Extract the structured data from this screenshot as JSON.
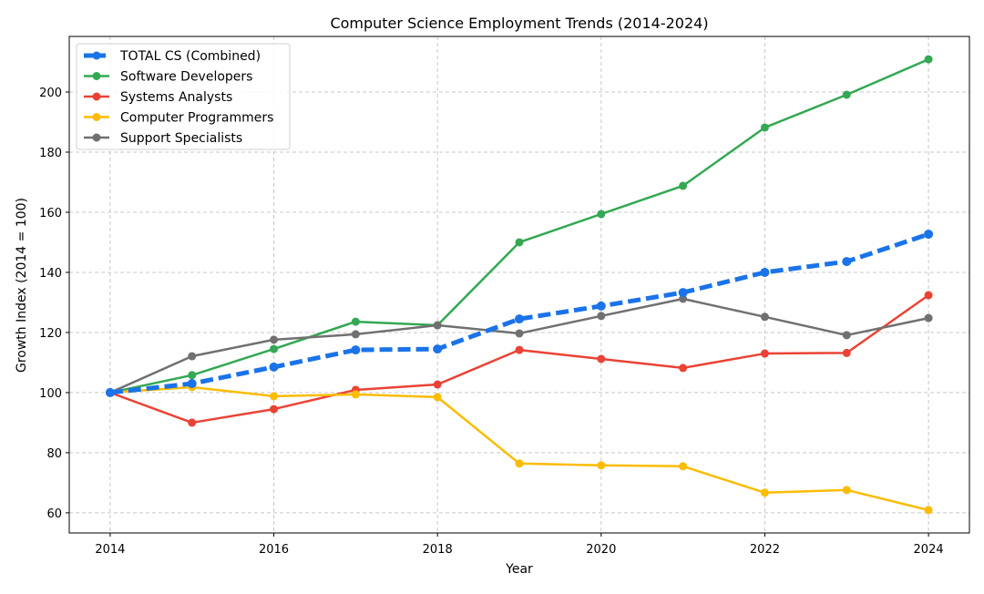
{
  "chart_data": {
    "type": "line",
    "title": "Computer Science Employment Trends (2014-2024)",
    "xlabel": "Year",
    "ylabel": "Growth Index (2014 = 100)",
    "xlim": [
      2013.5,
      2024.5
    ],
    "ylim": [
      53.3,
      218.5
    ],
    "xticks": [
      2014,
      2016,
      2018,
      2020,
      2022,
      2024
    ],
    "yticks": [
      60,
      80,
      100,
      120,
      140,
      160,
      180,
      200
    ],
    "grid": true,
    "legend_position": "top-left",
    "x": [
      2014,
      2015,
      2016,
      2017,
      2018,
      2019,
      2020,
      2021,
      2022,
      2023,
      2024
    ],
    "series": [
      {
        "name": "TOTAL CS (Combined)",
        "color": "#1a73e8",
        "dashed": true,
        "values": [
          100,
          103.0,
          108.5,
          114.2,
          114.5,
          124.5,
          128.8,
          133.3,
          140.0,
          143.6,
          152.7
        ]
      },
      {
        "name": "Software Developers",
        "color": "#34a853",
        "dashed": false,
        "values": [
          100,
          105.8,
          114.5,
          123.6,
          122.4,
          150.0,
          159.4,
          168.8,
          188.2,
          199.1,
          210.9
        ]
      },
      {
        "name": "Systems Analysts",
        "color": "#ea4335",
        "dashed": false,
        "values": [
          100,
          90.0,
          94.5,
          100.9,
          102.7,
          114.2,
          111.2,
          108.2,
          113.0,
          113.2,
          132.4
        ]
      },
      {
        "name": "Computer Programmers",
        "color": "#fbbc04",
        "dashed": false,
        "values": [
          100,
          101.8,
          98.8,
          99.4,
          98.5,
          76.4,
          75.8,
          75.5,
          66.7,
          67.6,
          60.9
        ]
      },
      {
        "name": "Support Specialists",
        "color": "#707070",
        "dashed": false,
        "values": [
          100,
          112.1,
          117.6,
          119.4,
          122.4,
          119.7,
          125.5,
          131.2,
          125.2,
          119.1,
          124.8
        ]
      }
    ]
  }
}
